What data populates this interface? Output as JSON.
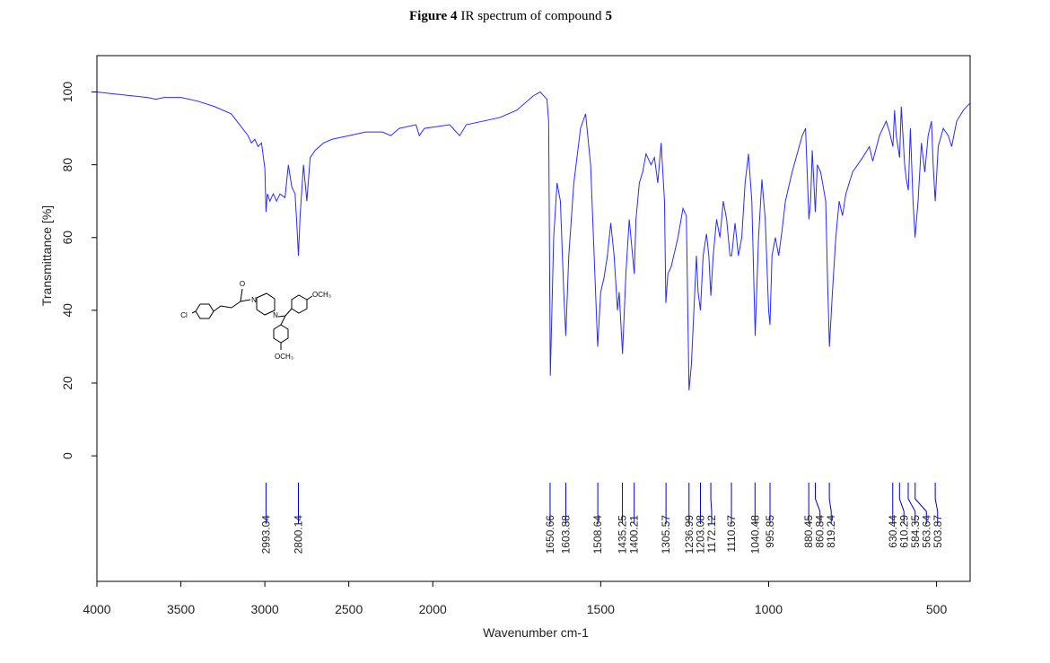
{
  "chart_data": {
    "type": "line",
    "title_parts": [
      "Figure 4",
      "IR spectrum of compound",
      "5"
    ],
    "x_label": "Wavenumber cm-1",
    "y_label": "Transmittance [%]",
    "x": [
      4000,
      3900,
      3800,
      3700,
      3650,
      3600,
      3500,
      3400,
      3300,
      3200,
      3150,
      3100,
      3080,
      3060,
      3040,
      3020,
      3000,
      2993,
      2985,
      2970,
      2950,
      2930,
      2910,
      2880,
      2860,
      2840,
      2820,
      2810,
      2800,
      2790,
      2770,
      2750,
      2730,
      2700,
      2650,
      2600,
      2500,
      2400,
      2300,
      2250,
      2200,
      2100,
      2080,
      2050,
      1950,
      1920,
      1900,
      1800,
      1750,
      1700,
      1680,
      1660,
      1655,
      1650,
      1640,
      1630,
      1620,
      1610,
      1604,
      1595,
      1580,
      1560,
      1545,
      1530,
      1509,
      1500,
      1490,
      1480,
      1470,
      1460,
      1450,
      1445,
      1435,
      1425,
      1415,
      1400,
      1395,
      1385,
      1375,
      1365,
      1350,
      1340,
      1330,
      1320,
      1310,
      1306,
      1300,
      1290,
      1270,
      1255,
      1245,
      1237,
      1230,
      1220,
      1215,
      1210,
      1203,
      1195,
      1185,
      1178,
      1172,
      1165,
      1155,
      1145,
      1135,
      1125,
      1115,
      1110,
      1100,
      1090,
      1080,
      1070,
      1060,
      1050,
      1040,
      1030,
      1020,
      1010,
      1000,
      996,
      990,
      980,
      970,
      960,
      950,
      930,
      900,
      890,
      880,
      875,
      870,
      861,
      855,
      845,
      830,
      825,
      819,
      810,
      800,
      790,
      780,
      770,
      750,
      720,
      700,
      690,
      670,
      650,
      640,
      630,
      625,
      620,
      610,
      605,
      595,
      590,
      584,
      578,
      570,
      564,
      555,
      545,
      535,
      525,
      515,
      510,
      504,
      495,
      480,
      465,
      455,
      440,
      420,
      400
    ],
    "values": [
      100,
      99.5,
      99,
      98.5,
      98,
      98.5,
      98.5,
      97.5,
      96,
      94,
      91,
      88,
      86,
      87,
      85,
      86,
      79,
      67,
      72,
      70,
      72,
      70,
      72,
      71,
      80,
      74,
      72,
      64,
      55,
      66,
      80,
      70,
      82,
      84,
      86,
      87,
      88,
      89,
      89,
      88,
      90,
      91,
      88,
      90,
      91,
      88,
      91,
      93,
      95,
      99,
      100,
      98,
      92,
      22,
      60,
      75,
      70,
      45,
      33,
      55,
      75,
      90,
      94,
      80,
      30,
      45,
      49,
      55,
      64,
      55,
      40,
      45,
      28,
      50,
      65,
      50,
      65,
      75,
      78,
      83,
      80,
      82,
      75,
      86,
      70,
      42,
      50,
      52,
      60,
      68,
      66,
      18,
      25,
      45,
      55,
      45,
      40,
      55,
      61,
      55,
      44,
      55,
      65,
      60,
      70,
      65,
      55,
      55,
      64,
      55,
      60,
      75,
      83,
      70,
      33,
      60,
      76,
      65,
      40,
      36,
      55,
      60,
      55,
      62,
      70,
      78,
      88,
      90,
      65,
      70,
      84,
      67,
      80,
      78,
      70,
      50,
      30,
      45,
      60,
      70,
      66,
      72,
      78,
      82,
      85,
      81,
      88,
      92,
      89,
      85,
      95,
      88,
      82,
      96,
      80,
      76,
      73,
      90,
      70,
      60,
      70,
      86,
      78,
      88,
      92,
      80,
      70,
      85,
      90,
      88,
      85,
      92,
      95,
      97
    ],
    "color": "#2a2aff",
    "xlim": [
      4000,
      400
    ],
    "x_break": 2000,
    "x_break_factor": 2,
    "xticks": [
      4000,
      3500,
      3000,
      2500,
      2000,
      1500,
      1000,
      500
    ],
    "ylim": [
      -34.5,
      110
    ],
    "yticks": [
      0,
      20,
      40,
      60,
      80,
      100
    ],
    "grid": false,
    "peak_labels": [
      2993.04,
      2800.14,
      1650.66,
      1603.88,
      1508.64,
      1435.25,
      1400.21,
      1305.57,
      1236.99,
      1203.08,
      1172.12,
      1110.67,
      1040.48,
      995.85,
      880.45,
      860.84,
      819.24,
      630.44,
      610.29,
      584.35,
      563.64,
      503.87
    ],
    "peak_color": "#0000cc",
    "structure_labels": [
      "Cl",
      "O",
      "N",
      "N",
      "OCH₃",
      "OCH₃"
    ]
  }
}
